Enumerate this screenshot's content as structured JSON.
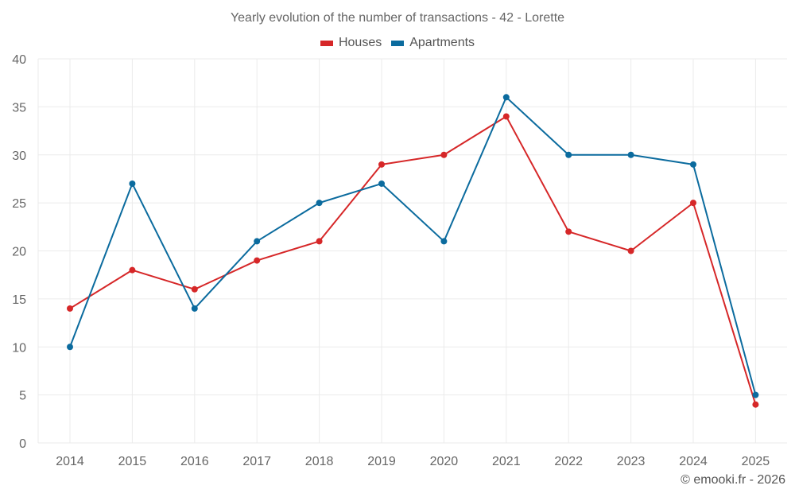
{
  "chart_data": {
    "type": "line",
    "title": "Yearly evolution of the number of transactions - 42 - Lorette",
    "xlabel": "",
    "ylabel": "",
    "categories": [
      "2014",
      "2015",
      "2016",
      "2017",
      "2018",
      "2019",
      "2020",
      "2021",
      "2022",
      "2023",
      "2024",
      "2025"
    ],
    "yticks": [
      0,
      5,
      10,
      15,
      20,
      25,
      30,
      35,
      40
    ],
    "ylim": [
      0,
      40
    ],
    "grid": true,
    "legend_position": "top-center",
    "series": [
      {
        "name": "Houses",
        "color": "#d62728",
        "values": [
          14,
          18,
          16,
          19,
          21,
          29,
          30,
          34,
          22,
          20,
          25,
          4
        ]
      },
      {
        "name": "Apartments",
        "color": "#0b6b9e",
        "values": [
          10,
          27,
          14,
          21,
          25,
          27,
          21,
          36,
          30,
          30,
          29,
          5
        ]
      }
    ],
    "watermark": "© emooki.fr - 2026"
  }
}
